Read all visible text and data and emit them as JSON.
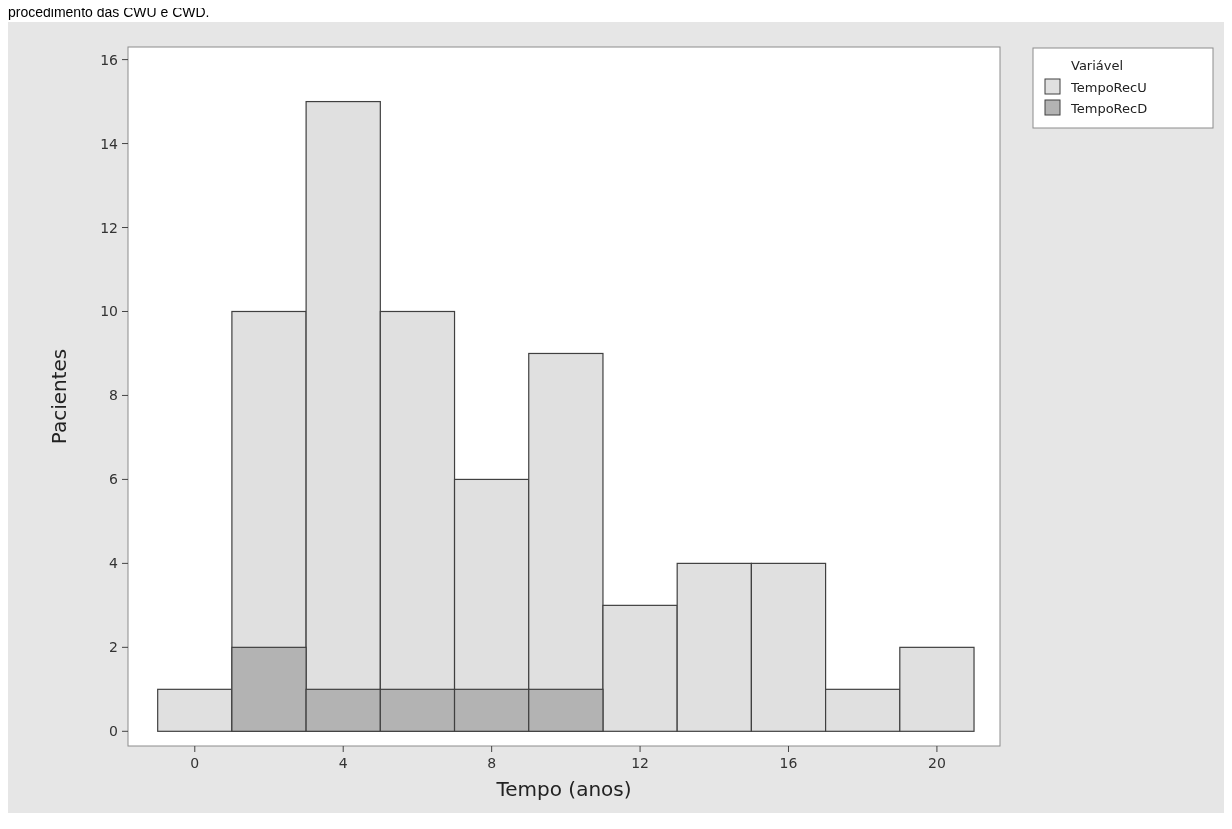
{
  "chart_data": {
    "type": "histogram",
    "xlabel": "Tempo (anos)",
    "ylabel": "Pacientes",
    "legend_title": "Variável",
    "annotations": [
      "procedimento das CWU e CWD."
    ],
    "bins": [
      -1,
      1,
      3,
      5,
      7,
      9,
      11,
      13,
      15,
      17,
      19,
      21
    ],
    "series": [
      {
        "name": "TempoRecU",
        "color": "#e0e0e0",
        "values": [
          1,
          10,
          15,
          10,
          6,
          9,
          3,
          4,
          4,
          1,
          2
        ]
      },
      {
        "name": "TempoRecD",
        "color": "#b3b3b3",
        "values": [
          0,
          2,
          1,
          1,
          1,
          1,
          0,
          0,
          0,
          0,
          0
        ]
      }
    ],
    "xlim": [
      -1.8,
      21.7
    ],
    "xticks": [
      0,
      4,
      8,
      12,
      16,
      20
    ],
    "ylim": [
      -0.35,
      16.3
    ],
    "yticks": [
      0,
      2,
      4,
      6,
      8,
      10,
      12,
      14,
      16
    ],
    "grid": false,
    "legend": "top right"
  }
}
